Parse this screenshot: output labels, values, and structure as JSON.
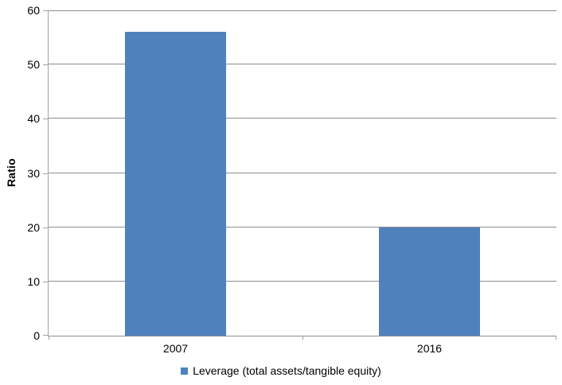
{
  "chart_data": {
    "type": "bar",
    "title": "",
    "categories": [
      "2007",
      "2016"
    ],
    "series": [
      {
        "name": "Leverage (total assets/tangible equity)",
        "values": [
          56,
          20
        ]
      }
    ],
    "xlabel": "",
    "ylabel": "Ratio",
    "ylim": [
      0,
      60
    ],
    "ytick_step": 10,
    "grid": "horizontal",
    "legend_position": "bottom",
    "bar_color": "#4F81BD",
    "gridline_color": "#8E8E8E",
    "axis_color": "#A3A3A3",
    "text_color": "#000000"
  }
}
